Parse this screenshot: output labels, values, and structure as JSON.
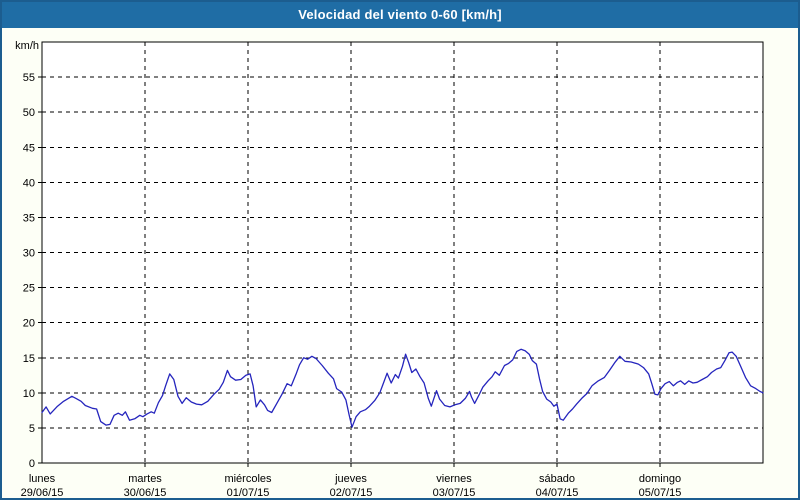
{
  "window": {
    "title": "Velocidad del viento 0-60 [km/h]"
  },
  "colors": {
    "titlebar_bg": "#1f6da5",
    "titlebar_text": "#ffffff",
    "outer_border": "#1c5d8f",
    "page_bg": "#fdfff6",
    "plot_border": "#000000",
    "grid": "#000000",
    "series_line": "#2525bd",
    "label_text": "#000000"
  },
  "chart_data": {
    "type": "line",
    "title": "Velocidad del viento 0-60 [km/h]",
    "unit_label": "km/h",
    "xlabel": "",
    "ylabel": "km/h",
    "ylim": [
      0,
      60
    ],
    "ytick_step": 5,
    "ytick_labels": [
      "0",
      "5",
      "10",
      "15",
      "20",
      "25",
      "30",
      "35",
      "40",
      "45",
      "50",
      "55"
    ],
    "grid": "dashed",
    "legend_position": "none",
    "x_axis_days": [
      {
        "name": "lunes",
        "date": "29/06/15"
      },
      {
        "name": "martes",
        "date": "30/06/15"
      },
      {
        "name": "miércoles",
        "date": "01/07/15"
      },
      {
        "name": "jueves",
        "date": "02/07/15"
      },
      {
        "name": "viernes",
        "date": "03/07/15"
      },
      {
        "name": "sábado",
        "date": "04/07/15"
      },
      {
        "name": "domingo",
        "date": "05/07/15"
      }
    ],
    "series": [
      {
        "name": "Velocidad del viento",
        "color": "#2525bd",
        "x_days": [
          0.0,
          0.04,
          0.08,
          0.15,
          0.21,
          0.29,
          0.33,
          0.38,
          0.42,
          0.49,
          0.53,
          0.57,
          0.62,
          0.66,
          0.7,
          0.74,
          0.78,
          0.81,
          0.85,
          0.9,
          0.95,
          0.98,
          1.02,
          1.06,
          1.09,
          1.13,
          1.17,
          1.2,
          1.24,
          1.28,
          1.32,
          1.36,
          1.4,
          1.45,
          1.5,
          1.55,
          1.61,
          1.67,
          1.72,
          1.76,
          1.8,
          1.83,
          1.88,
          1.93,
          1.98,
          2.02,
          2.05,
          2.08,
          2.12,
          2.16,
          2.19,
          2.23,
          2.28,
          2.33,
          2.38,
          2.42,
          2.47,
          2.5,
          2.54,
          2.58,
          2.62,
          2.66,
          2.72,
          2.78,
          2.83,
          2.86,
          2.91,
          2.95,
          2.98,
          3.01,
          3.05,
          3.09,
          3.14,
          3.18,
          3.23,
          3.28,
          3.32,
          3.35,
          3.39,
          3.43,
          3.46,
          3.5,
          3.53,
          3.56,
          3.59,
          3.63,
          3.67,
          3.71,
          3.75,
          3.78,
          3.83,
          3.86,
          3.91,
          3.96,
          4.01,
          4.06,
          4.11,
          4.15,
          4.17,
          4.2,
          4.24,
          4.28,
          4.33,
          4.37,
          4.4,
          4.44,
          4.49,
          4.53,
          4.57,
          4.61,
          4.65,
          4.69,
          4.73,
          4.76,
          4.8,
          4.83,
          4.86,
          4.9,
          4.94,
          4.97,
          5.0,
          5.03,
          5.06,
          5.11,
          5.15,
          5.19,
          5.24,
          5.29,
          5.34,
          5.4,
          5.46,
          5.51,
          5.56,
          5.61,
          5.66,
          5.72,
          5.79,
          5.84,
          5.89,
          5.92,
          5.95,
          5.98,
          6.01,
          6.05,
          6.09,
          6.13,
          6.17,
          6.2,
          6.24,
          6.28,
          6.32,
          6.36,
          6.41,
          6.46,
          6.5,
          6.55,
          6.59,
          6.63,
          6.67,
          6.7,
          6.74,
          6.78,
          6.83,
          6.88,
          6.93,
          6.97,
          7.0
        ],
        "values": [
          7.2,
          8.0,
          7.0,
          8.1,
          8.8,
          9.5,
          9.2,
          8.8,
          8.2,
          7.8,
          7.7,
          5.9,
          5.4,
          5.5,
          6.8,
          7.1,
          6.8,
          7.3,
          6.1,
          6.3,
          6.8,
          6.6,
          7.0,
          7.3,
          7.1,
          8.6,
          9.6,
          11.0,
          12.7,
          11.9,
          9.5,
          8.5,
          9.3,
          8.7,
          8.4,
          8.3,
          8.8,
          9.8,
          10.5,
          11.5,
          13.2,
          12.3,
          11.8,
          11.9,
          12.5,
          12.7,
          11.0,
          8.0,
          9.0,
          8.3,
          7.5,
          7.2,
          8.5,
          9.8,
          11.3,
          11.0,
          12.8,
          14.0,
          15.0,
          14.8,
          15.2,
          14.9,
          13.9,
          12.8,
          12.0,
          10.6,
          10.1,
          9.0,
          7.0,
          5.1,
          6.6,
          7.3,
          7.6,
          8.1,
          8.9,
          10.0,
          11.6,
          12.8,
          11.4,
          12.6,
          12.1,
          13.8,
          15.5,
          14.3,
          12.9,
          13.4,
          12.3,
          11.4,
          9.2,
          8.1,
          10.3,
          9.1,
          8.2,
          8.0,
          8.3,
          8.5,
          9.2,
          10.2,
          9.4,
          8.5,
          9.6,
          10.8,
          11.7,
          12.3,
          13.0,
          12.5,
          13.9,
          14.2,
          14.7,
          15.9,
          16.2,
          16.0,
          15.5,
          14.6,
          14.1,
          12.0,
          10.2,
          9.1,
          8.7,
          8.1,
          8.4,
          6.3,
          6.1,
          7.1,
          7.7,
          8.4,
          9.2,
          9.9,
          11.0,
          11.7,
          12.2,
          13.2,
          14.3,
          15.2,
          14.5,
          14.4,
          14.1,
          13.6,
          12.7,
          11.3,
          9.8,
          9.7,
          10.6,
          11.3,
          11.6,
          11.0,
          11.5,
          11.7,
          11.2,
          11.7,
          11.4,
          11.5,
          11.9,
          12.3,
          12.9,
          13.4,
          13.6,
          14.6,
          15.7,
          15.8,
          15.2,
          13.9,
          12.2,
          11.0,
          10.6,
          10.2,
          10.0
        ]
      }
    ]
  }
}
